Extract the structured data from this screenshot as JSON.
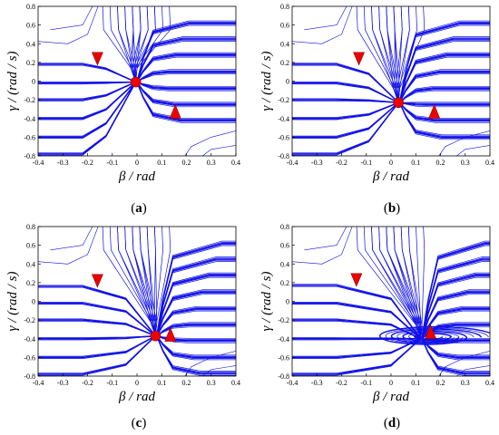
{
  "chart_data": [
    {
      "panel": "(a)",
      "caption": {
        "open": "(",
        "letter": "a",
        "close": ")"
      },
      "type": "streamline",
      "xlabel": "β / rad",
      "ylabel": "γ / (rad / s)",
      "xlim": [
        -0.4,
        0.4
      ],
      "ylim": [
        -0.8,
        0.8
      ],
      "xticks": [
        "-0.4",
        "-0.3",
        "-0.2",
        "-0.1",
        "0",
        "0.1",
        "0.2",
        "0.3",
        "0.4"
      ],
      "yticks": [
        "0.8",
        "0.6",
        "0.4",
        "0.2",
        "0",
        "-0.2",
        "-0.4",
        "-0.6",
        "-0.8"
      ],
      "equilibrium": {
        "x": -0.005,
        "y": -0.01
      },
      "markers_down": [
        {
          "x": -0.16,
          "y": 0.23
        }
      ],
      "markers_up": [
        {
          "x": 0.155,
          "y": -0.33
        }
      ],
      "spiral": false,
      "colors": {
        "streamline": "#1010e8",
        "marker": "#ee0000"
      }
    },
    {
      "panel": "(b)",
      "caption": {
        "open": "(",
        "letter": "b",
        "close": ")"
      },
      "type": "streamline",
      "xlabel": "β / rad",
      "ylabel": "γ / (rad / s)",
      "xlim": [
        -0.4,
        0.4
      ],
      "ylim": [
        -0.8,
        0.8
      ],
      "xticks": [
        "-0.4",
        "-0.3",
        "-0.2",
        "-0.1",
        "0",
        "0.1",
        "0.2",
        "0.3",
        "0.4"
      ],
      "yticks": [
        "0.8",
        "0.6",
        "0.4",
        "0.2",
        "0",
        "-0.2",
        "-0.4",
        "-0.6",
        "-0.8"
      ],
      "equilibrium": {
        "x": 0.03,
        "y": -0.23
      },
      "markers_down": [
        {
          "x": -0.13,
          "y": 0.23
        }
      ],
      "markers_up": [
        {
          "x": 0.175,
          "y": -0.33
        }
      ],
      "spiral": false,
      "colors": {
        "streamline": "#1010e8",
        "marker": "#ee0000"
      }
    },
    {
      "panel": "(c)",
      "caption": {
        "open": "(",
        "letter": "c",
        "close": ")"
      },
      "type": "streamline",
      "xlabel": "β / rad",
      "ylabel": "γ / (rad / s)",
      "xlim": [
        -0.4,
        0.4
      ],
      "ylim": [
        -0.8,
        0.8
      ],
      "xticks": [
        "-0.4",
        "-0.3",
        "-0.2",
        "-0.1",
        "0",
        "0.1",
        "0.2",
        "0.3",
        "0.4"
      ],
      "yticks": [
        "0.8",
        "0.6",
        "0.4",
        "0.2",
        "0",
        "-0.2",
        "-0.4",
        "-0.6",
        "-0.8"
      ],
      "equilibrium": {
        "x": 0.075,
        "y": -0.37
      },
      "markers_down": [
        {
          "x": -0.16,
          "y": 0.21
        }
      ],
      "markers_up": [
        {
          "x": 0.135,
          "y": -0.36
        }
      ],
      "spiral": false,
      "colors": {
        "streamline": "#1010e8",
        "marker": "#ee0000"
      }
    },
    {
      "panel": "(d)",
      "caption": {
        "open": "(",
        "letter": "d",
        "close": ")"
      },
      "type": "streamline",
      "xlabel": "β / rad",
      "ylabel": "γ / (rad / s)",
      "xlim": [
        -0.4,
        0.4
      ],
      "ylim": [
        -0.8,
        0.8
      ],
      "xticks": [
        "-0.4",
        "-0.3",
        "-0.2",
        "-0.1",
        "0",
        "0.1",
        "0.2",
        "0.3",
        "0.4"
      ],
      "yticks": [
        "0.8",
        "0.6",
        "0.4",
        "0.2",
        "0",
        "-0.2",
        "-0.4",
        "-0.6",
        "-0.8"
      ],
      "equilibrium": null,
      "markers_down": [
        {
          "x": -0.14,
          "y": 0.22
        }
      ],
      "markers_up": [
        {
          "x": 0.16,
          "y": -0.33
        }
      ],
      "spiral": true,
      "colors": {
        "streamline": "#1010e8",
        "marker": "#ee0000"
      }
    }
  ]
}
